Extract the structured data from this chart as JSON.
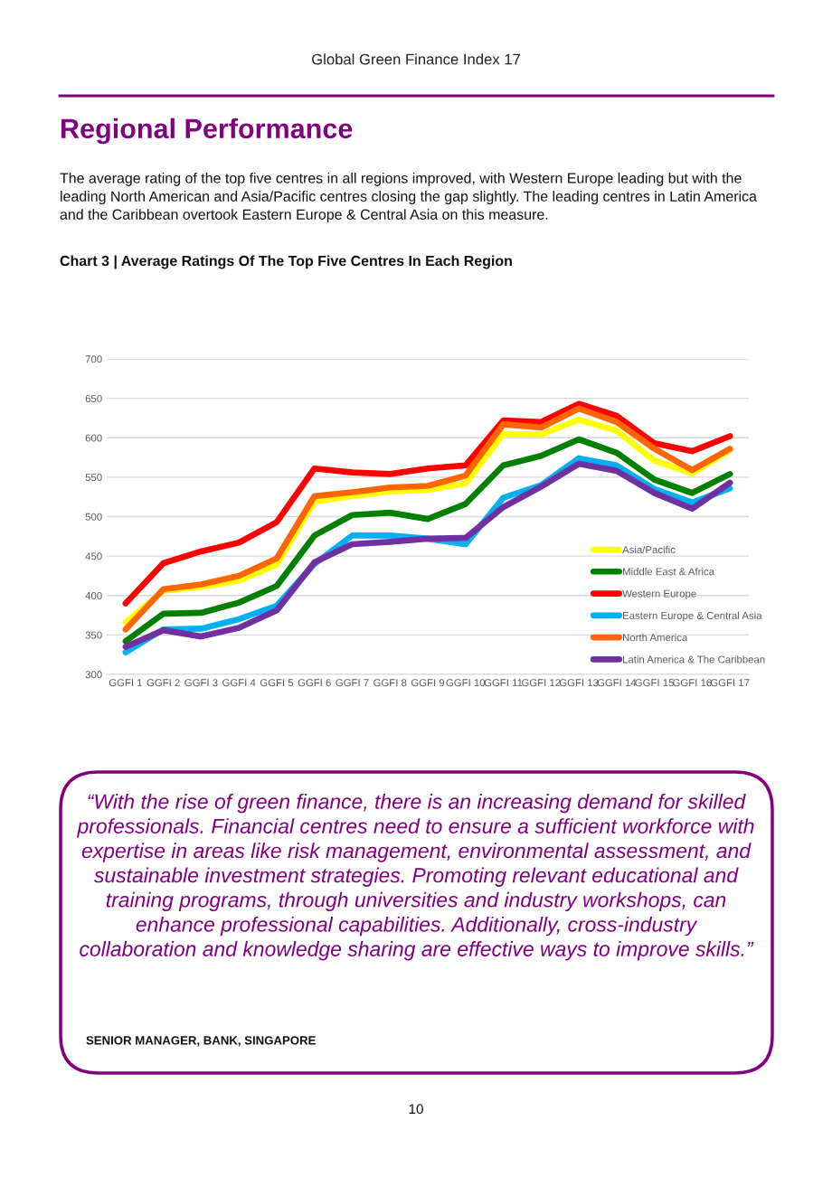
{
  "chart_data": {
    "type": "line",
    "title": "Regional Performance",
    "subtitle": "The average rating of the top five centres in all regions improved, with Western Europe leading but with the leading North American and Asia/Pacific centres closing the gap slightly. The leading centres in Latin America and the Caribbean overtook Eastern Europe & Central Asia on this measure.",
    "annotations": [
      "Global Green Finance Index 17",
      "Chart 3 | Average Ratings Of The Top Five Centres In Each Region",
      "“With the rise of green finance, there is an increasing demand for skilled professionals. Financial centres need to ensure a sufficient workforce with expertise in areas like risk management, environmental assessment, and sustainable investment strategies. Promoting relevant educational and training programs, through universities and industry workshops, can enhance professional capabilities. Additionally, cross-industry collaboration and knowledge sharing are effective ways to improve skills.”",
      "SENIOR MANAGER, BANK, SINGAPORE",
      "10"
    ],
    "categories": [
      "GGFI 1",
      "GGFI 2",
      "GGFI 3",
      "GGFI 4",
      "GGFI 5",
      "GGFI 6",
      "GGFI 7",
      "GGFI 8",
      "GGFI 9",
      "GGFI 10",
      "GGFI 11",
      "GGFI 12",
      "GGFI 13",
      "GGFI 14",
      "GGFI 15",
      "GGFI 16",
      "GGFI 17"
    ],
    "series": [
      {
        "name": "Asia/Pacific",
        "color": "#ffff00",
        "values": [
          366,
          406,
          411,
          419,
          439,
          519,
          526,
          532,
          534,
          542,
          605,
          604,
          623,
          609,
          571,
          555,
          584
        ]
      },
      {
        "name": "Middle East & Africa",
        "color": "#008000",
        "values": [
          342,
          377,
          378,
          391,
          412,
          476,
          502,
          505,
          497,
          516,
          565,
          577,
          598,
          581,
          547,
          530,
          554
        ]
      },
      {
        "name": "Western Europe",
        "color": "#ff0000",
        "values": [
          390,
          441,
          456,
          467,
          493,
          561,
          556,
          554,
          561,
          565,
          622,
          620,
          643,
          628,
          593,
          583,
          602
        ]
      },
      {
        "name": "Eastern Europe & Central Asia",
        "color": "#00b0f0",
        "values": [
          328,
          357,
          358,
          370,
          387,
          440,
          476,
          476,
          472,
          465,
          524,
          540,
          574,
          565,
          535,
          518,
          536
        ]
      },
      {
        "name": "North America",
        "color": "#ff6600",
        "values": [
          357,
          408,
          414,
          425,
          447,
          526,
          531,
          537,
          539,
          552,
          617,
          613,
          637,
          620,
          586,
          559,
          586
        ]
      },
      {
        "name": "Latin America & The Caribbean",
        "color": "#7030a0",
        "values": [
          335,
          356,
          348,
          359,
          381,
          442,
          465,
          468,
          472,
          473,
          512,
          538,
          567,
          558,
          530,
          510,
          543
        ]
      }
    ],
    "ylim": [
      300,
      700
    ],
    "yticks": [
      300,
      350,
      400,
      450,
      500,
      550,
      600,
      650,
      700
    ],
    "grid": "y",
    "legend": "lower right",
    "marker": "none",
    "line_style": "solid"
  }
}
